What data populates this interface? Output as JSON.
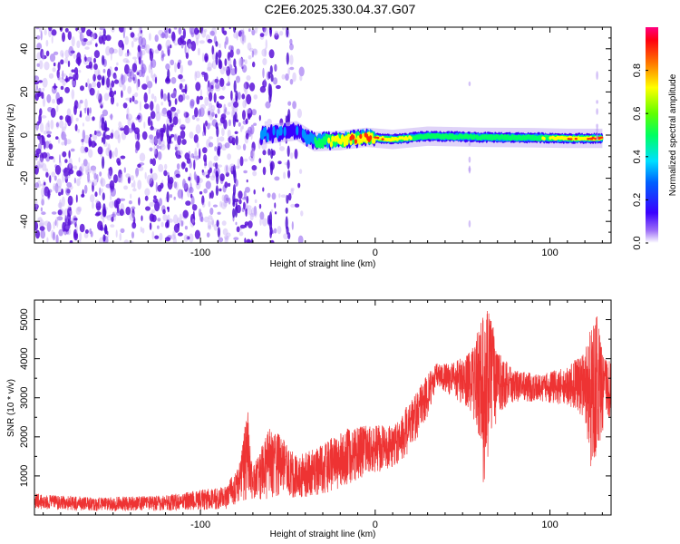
{
  "title": "C2E6.2025.330.04.37.G07",
  "colors": {
    "snr_line": "#ee3333",
    "noise_purple": "#6a1fe0",
    "frame": "#000000"
  },
  "chart_data": [
    {
      "type": "heatmap",
      "title": "C2E6.2025.330.04.37.G07",
      "xlabel": "Height of straight line (km)",
      "ylabel": "Frequency (Hz)",
      "xlim": [
        -195,
        135
      ],
      "ylim": [
        -50,
        50
      ],
      "xticks": [
        -100,
        0,
        100
      ],
      "yticks": [
        -40,
        -20,
        0,
        20,
        40
      ],
      "colorbar": {
        "label": "Normalized spectral amplitude",
        "range": [
          0.0,
          1.0
        ],
        "ticks": [
          "0.0",
          "0.2",
          "0.4",
          "0.6",
          "0.8"
        ],
        "colormap": "rainbow (violet to red)"
      },
      "features": {
        "broadband_noise_x_range": [
          -195,
          -42
        ],
        "signal_ridge": [
          {
            "x": -65,
            "freq": 0.0,
            "amp": 0.35
          },
          {
            "x": -55,
            "freq": 1.0,
            "amp": 0.3
          },
          {
            "x": -45,
            "freq": 2.0,
            "amp": 0.3
          },
          {
            "x": -35,
            "freq": -3.0,
            "amp": 0.5
          },
          {
            "x": -20,
            "freq": -2.5,
            "amp": 0.85
          },
          {
            "x": -5,
            "freq": -1.0,
            "amp": 0.9
          },
          {
            "x": 10,
            "freq": -2.0,
            "amp": 0.8
          },
          {
            "x": 30,
            "freq": -0.5,
            "amp": 0.6
          },
          {
            "x": 60,
            "freq": -1.0,
            "amp": 0.55
          },
          {
            "x": 90,
            "freq": -1.2,
            "amp": 0.6
          },
          {
            "x": 110,
            "freq": -1.5,
            "amp": 0.85
          },
          {
            "x": 130,
            "freq": -1.5,
            "amp": 0.9
          }
        ],
        "spikes_x": [
          54,
          127
        ]
      }
    },
    {
      "type": "line",
      "xlabel": "Height of straight line (km)",
      "ylabel": "SNR (10 * v/v)",
      "xlim": [
        -195,
        135
      ],
      "ylim": [
        0,
        5500
      ],
      "xticks": [
        -100,
        0,
        100
      ],
      "yticks": [
        1000,
        2000,
        3000,
        4000,
        5000
      ],
      "grid": false,
      "envelope": [
        {
          "x": -195,
          "low": 150,
          "high": 550
        },
        {
          "x": -160,
          "low": 100,
          "high": 450
        },
        {
          "x": -120,
          "low": 100,
          "high": 500
        },
        {
          "x": -85,
          "low": 150,
          "high": 750
        },
        {
          "x": -78,
          "low": 300,
          "high": 1300
        },
        {
          "x": -73,
          "low": 400,
          "high": 2700
        },
        {
          "x": -70,
          "low": 350,
          "high": 1200
        },
        {
          "x": -60,
          "low": 400,
          "high": 2300
        },
        {
          "x": -55,
          "low": 500,
          "high": 2100
        },
        {
          "x": -45,
          "low": 400,
          "high": 1500
        },
        {
          "x": -30,
          "low": 500,
          "high": 1800
        },
        {
          "x": -20,
          "low": 700,
          "high": 2200
        },
        {
          "x": -5,
          "low": 1000,
          "high": 2300
        },
        {
          "x": 10,
          "low": 1200,
          "high": 2300
        },
        {
          "x": 20,
          "low": 1600,
          "high": 2900
        },
        {
          "x": 30,
          "low": 2500,
          "high": 3600
        },
        {
          "x": 35,
          "low": 3300,
          "high": 3900
        },
        {
          "x": 45,
          "low": 3000,
          "high": 3900
        },
        {
          "x": 55,
          "low": 2600,
          "high": 4200
        },
        {
          "x": 60,
          "low": 1800,
          "high": 4900
        },
        {
          "x": 62,
          "low": 700,
          "high": 5400
        },
        {
          "x": 66,
          "low": 1500,
          "high": 5200
        },
        {
          "x": 70,
          "low": 2600,
          "high": 4200
        },
        {
          "x": 80,
          "low": 2900,
          "high": 3700
        },
        {
          "x": 95,
          "low": 2900,
          "high": 3600
        },
        {
          "x": 110,
          "low": 2800,
          "high": 3800
        },
        {
          "x": 120,
          "low": 2500,
          "high": 4200
        },
        {
          "x": 124,
          "low": 1000,
          "high": 4900
        },
        {
          "x": 127,
          "low": 1500,
          "high": 5100
        },
        {
          "x": 130,
          "low": 2000,
          "high": 4200
        },
        {
          "x": 135,
          "low": 2600,
          "high": 4000
        }
      ]
    }
  ]
}
